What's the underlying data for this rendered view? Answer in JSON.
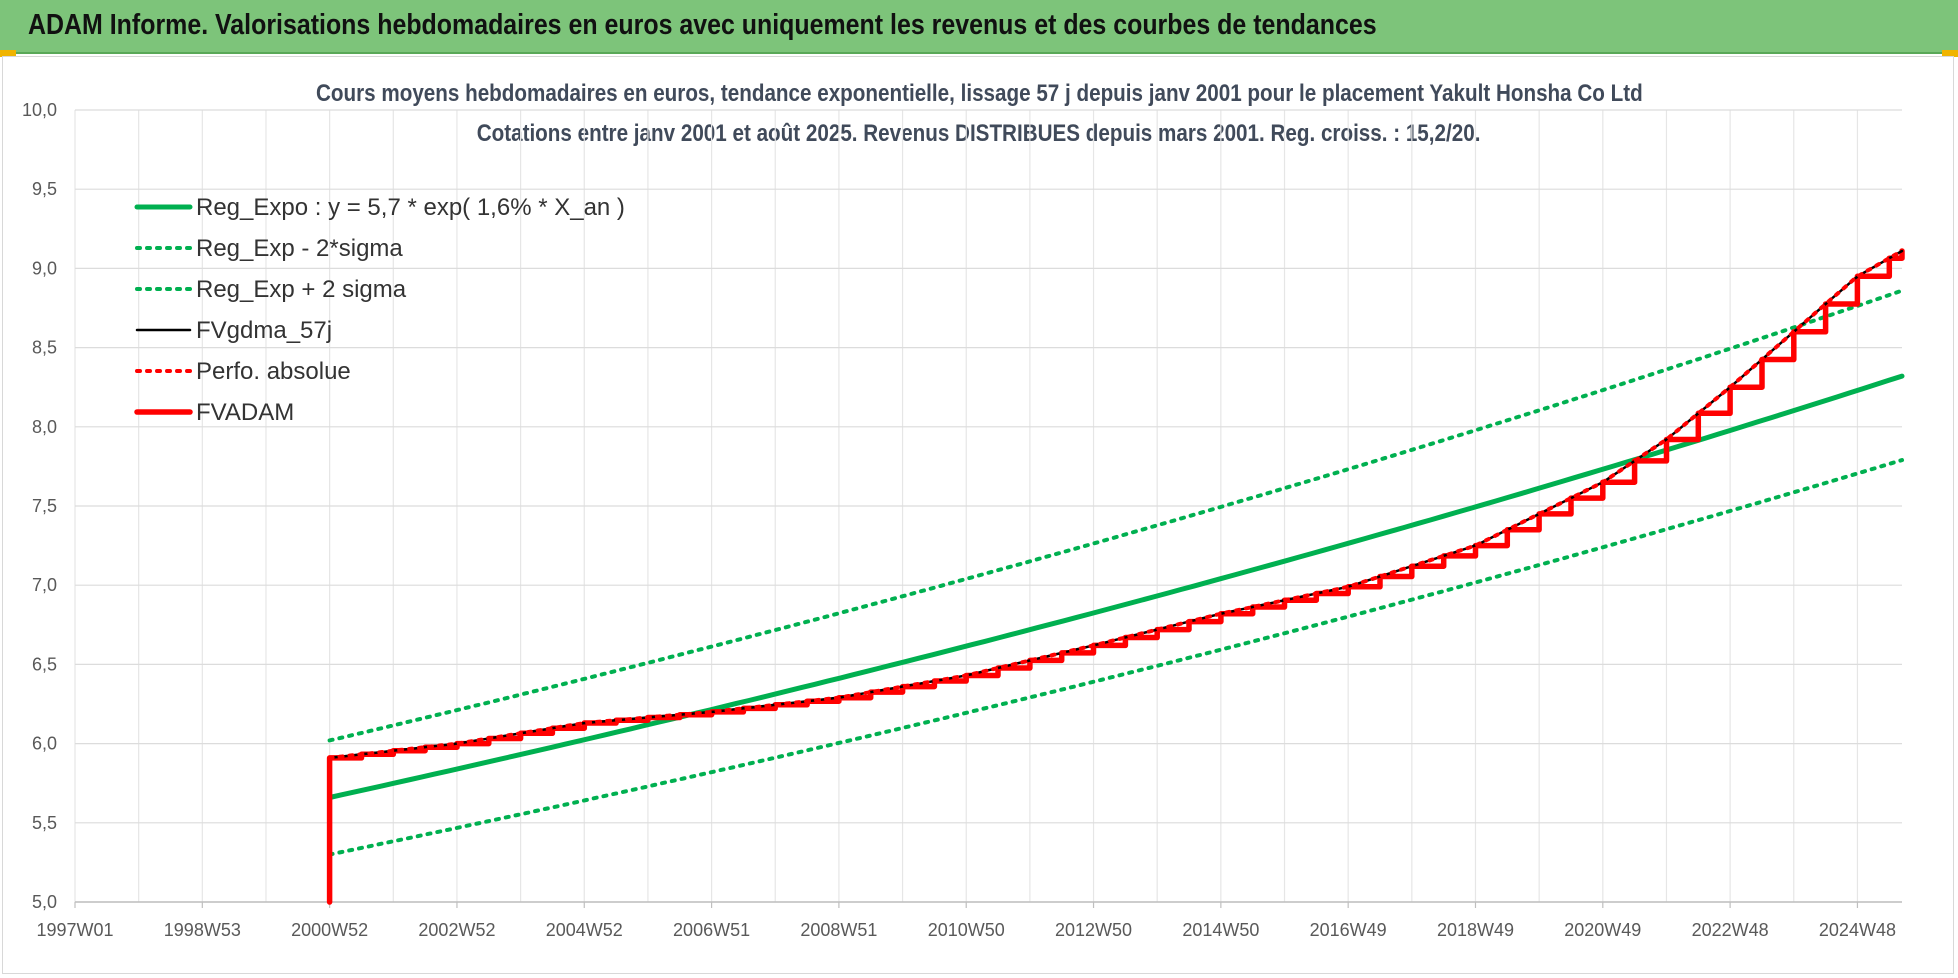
{
  "banner": {
    "title": "ADAM Informe. Valorisations hebdomadaires en euros avec uniquement les revenus et des courbes de tendances"
  },
  "colors": {
    "green": "#00b050",
    "red": "#ff0000",
    "black": "#000000",
    "banner": "#7dc47a"
  },
  "chart_data": {
    "type": "line",
    "title": "Cours moyens hebdomadaires en euros, tendance exponentielle, lissage 57 j depuis janv 2001 pour le placement Yakult Honsha Co Ltd",
    "subtitle": "Cotations entre janv 2001 et août 2025. Revenus DISTRIBUES depuis mars 2001. Reg. croiss. : 15,2/20.",
    "xlabel": "",
    "ylabel": "",
    "ylim": [
      5.0,
      10.0
    ],
    "y_ticks": [
      "10,0",
      "9,5",
      "9,0",
      "8,5",
      "8,0",
      "7,5",
      "7,0",
      "6,5",
      "6,0",
      "5,5",
      "5,0"
    ],
    "x_ticks": [
      "1997W01",
      "1998W53",
      "2000W52",
      "2002W52",
      "2004W52",
      "2006W51",
      "2008W51",
      "2010W50",
      "2012W50",
      "2014W50",
      "2016W49",
      "2018W49",
      "2020W49",
      "2022W48",
      "2024W48"
    ],
    "x_tick_years": [
      1997.0,
      1999.0,
      2001.0,
      2003.0,
      2005.0,
      2007.0,
      2009.0,
      2011.0,
      2013.0,
      2015.0,
      2017.0,
      2019.0,
      2021.0,
      2023.0,
      2025.0
    ],
    "xlim": [
      1997.0,
      2025.7
    ],
    "grid": true,
    "legend_position": "top-left",
    "series": [
      {
        "name": "Reg_Expo : y = 5,7 * exp( 1,6% *  X_an )",
        "style": "solid-thick",
        "color": "#00b050",
        "x": [
          2001.0,
          2025.7
        ],
        "y": [
          5.66,
          8.32
        ]
      },
      {
        "name": "Reg_Exp - 2*sigma",
        "style": "dotted",
        "color": "#00b050",
        "x": [
          2001.0,
          2025.7
        ],
        "y": [
          5.3,
          7.79
        ]
      },
      {
        "name": "Reg_Exp + 2 sigma",
        "style": "dotted",
        "color": "#00b050",
        "x": [
          2001.0,
          2025.7
        ],
        "y": [
          6.02,
          8.86
        ]
      },
      {
        "name": "FVgdma_57j",
        "style": "solid",
        "color": "#000000",
        "x": [
          2001.0,
          2003.0,
          2005.0,
          2007.0,
          2009.0,
          2011.0,
          2013.0,
          2015.0,
          2017.0,
          2019.0,
          2021.0,
          2022.0,
          2023.0,
          2024.0,
          2025.0,
          2025.7
        ],
        "y": [
          5.91,
          6.0,
          6.13,
          6.2,
          6.29,
          6.43,
          6.62,
          6.82,
          6.99,
          7.25,
          7.65,
          7.92,
          8.25,
          8.6,
          8.95,
          9.11
        ]
      },
      {
        "name": "Perfo. absolue",
        "style": "dotted",
        "color": "#ff0000",
        "x": [
          2001.0,
          2003.0,
          2005.0,
          2007.0,
          2009.0,
          2011.0,
          2013.0,
          2015.0,
          2017.0,
          2019.0,
          2021.0,
          2022.0,
          2023.0,
          2024.0,
          2025.0,
          2025.7
        ],
        "y": [
          5.91,
          6.0,
          6.13,
          6.2,
          6.29,
          6.43,
          6.62,
          6.82,
          6.99,
          7.25,
          7.65,
          7.92,
          8.25,
          8.6,
          8.95,
          9.11
        ]
      },
      {
        "name": "FVADAM",
        "style": "solid-thick-step",
        "color": "#ff0000",
        "x": [
          2001.0,
          2003.0,
          2005.0,
          2007.0,
          2009.0,
          2011.0,
          2013.0,
          2015.0,
          2017.0,
          2019.0,
          2021.0,
          2022.0,
          2023.0,
          2024.0,
          2025.0,
          2025.7
        ],
        "y": [
          5.91,
          6.0,
          6.13,
          6.2,
          6.29,
          6.43,
          6.62,
          6.82,
          6.99,
          7.25,
          7.65,
          7.92,
          8.25,
          8.6,
          8.95,
          9.11
        ],
        "start_value": 5.0,
        "steps_per_year": 2
      }
    ]
  }
}
